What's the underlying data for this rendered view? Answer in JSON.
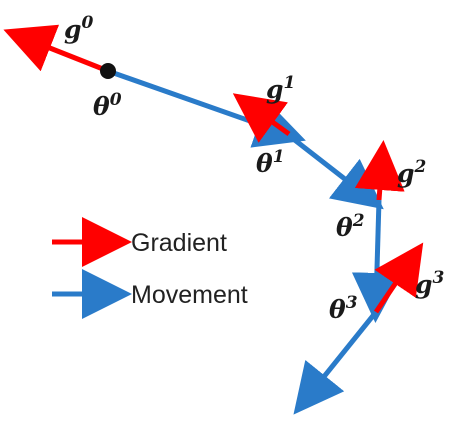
{
  "colors": {
    "gradient": "#ff0000",
    "movement": "#2a7bc9",
    "point": "#111111",
    "text": "#1a1a1a"
  },
  "labels": {
    "g0": {
      "base": "g",
      "sup": "0"
    },
    "g1": {
      "base": "g",
      "sup": "1"
    },
    "g2": {
      "base": "g",
      "sup": "2"
    },
    "g3": {
      "base": "g",
      "sup": "3"
    },
    "theta0": {
      "base": "θ",
      "sup": "0"
    },
    "theta1": {
      "base": "θ",
      "sup": "1"
    },
    "theta2": {
      "base": "θ",
      "sup": "2"
    },
    "theta3": {
      "base": "θ",
      "sup": "3"
    }
  },
  "legend": {
    "gradient_label": "Gradient",
    "movement_label": "Movement"
  }
}
